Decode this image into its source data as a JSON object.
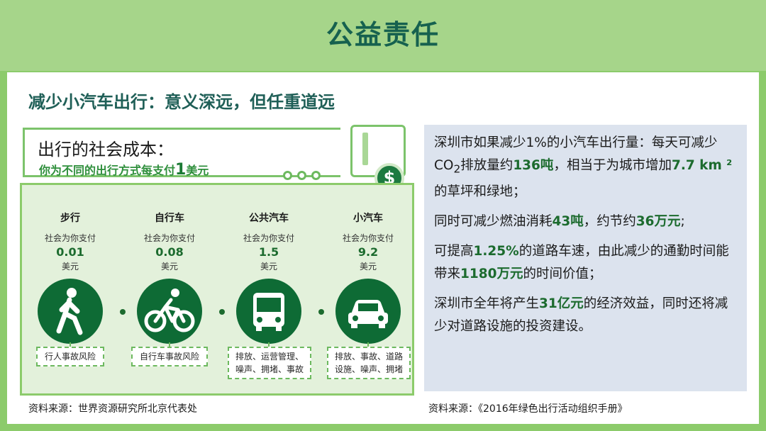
{
  "header": {
    "title": "公益责任"
  },
  "subtitle": "减少小汽车出行：意义深远，但任重道远",
  "infographic": {
    "title": "出行的社会成本：",
    "sub_prefix": "你为不同的出行方式每支付",
    "sub_num": "1",
    "sub_suffix": "美元",
    "dollar_icon": "dollar-icon",
    "modes": [
      {
        "name": "步行",
        "pay_label": "社会为你支付",
        "value": "0.01",
        "unit": "美元",
        "icon": "walker-icon",
        "tag": "行人事故风险"
      },
      {
        "name": "自行车",
        "pay_label": "社会为你支付",
        "value": "0.08",
        "unit": "美元",
        "icon": "bicycle-icon",
        "tag": "自行车事故风险"
      },
      {
        "name": "公共汽车",
        "pay_label": "社会为你支付",
        "value": "1.5",
        "unit": "美元",
        "icon": "bus-icon",
        "tag1": "排放、运营管理、",
        "tag2": "噪声、拥堵、事故"
      },
      {
        "name": "小汽车",
        "pay_label": "社会为你支付",
        "value": "9.2",
        "unit": "美元",
        "icon": "car-icon",
        "tag1": "排放、事故、道路",
        "tag2": "设施、噪声、拥堵"
      }
    ]
  },
  "panel": {
    "p1_a": "深圳市如果减少1%的小汽车出行量：每天可减少CO",
    "p1_sub": "2",
    "p1_b": "排放量约",
    "p1_hl1": "136吨",
    "p1_c": "，相当于为城市增加",
    "p1_hl2": "7.7 km ²",
    "p1_d": "的草坪和绿地；",
    "p2_a": "同时可减少燃油消耗",
    "p2_hl1": "43吨",
    "p2_b": "，约节约",
    "p2_hl2": "36万元",
    "p2_c": ";",
    "p3_a": "可提高",
    "p3_hl1": "1.25%",
    "p3_b": "的道路车速，由此减少的通勤时间能带来",
    "p3_hl2": "1180万元",
    "p3_c": "的时间价值；",
    "p4_a": "深圳市全年将产生",
    "p4_hl1": "31亿元",
    "p4_b": "的经济效益，同时还将减少对道路设施的投资建设。"
  },
  "sources": {
    "left": "资料来源：世界资源研究所北京代表处",
    "right": "资料来源：《2016年绿色出行活动组织手册》"
  },
  "colors": {
    "brand_green": "#1c6b2e",
    "frame_green": "#8ccb6b",
    "panel_bg": "#dce3ee"
  }
}
